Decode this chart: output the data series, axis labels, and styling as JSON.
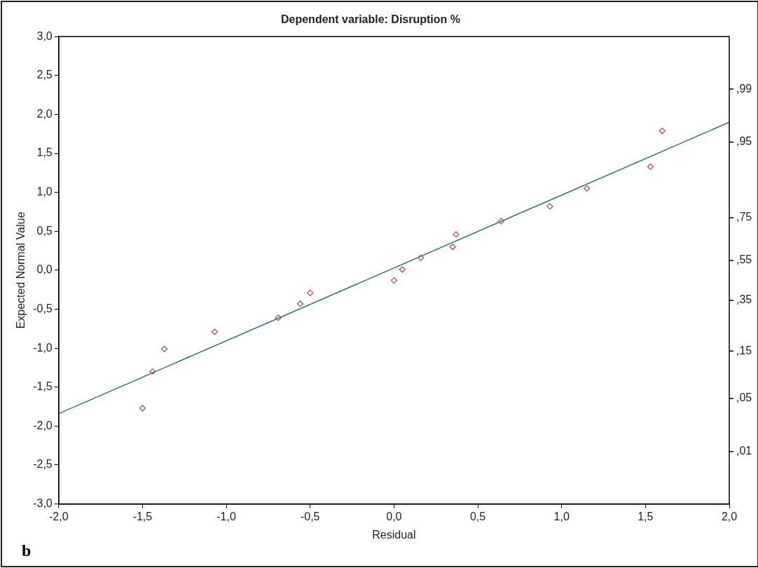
{
  "chart_data": {
    "type": "scatter",
    "title": "Dependent variable: Disruption %",
    "xlabel": "Residual",
    "ylabel": "Expected Normal Value",
    "xlim": [
      -2,
      2
    ],
    "xticks": [
      {
        "value": -2,
        "label": "-2,0"
      },
      {
        "value": -1.5,
        "label": "-1,5"
      },
      {
        "value": -1,
        "label": "-1,0"
      },
      {
        "value": -0.5,
        "label": "-0,5"
      },
      {
        "value": 0,
        "label": "0,0"
      },
      {
        "value": 0.5,
        "label": "0,5"
      },
      {
        "value": 1,
        "label": "1,0"
      },
      {
        "value": 1.5,
        "label": "1,5"
      },
      {
        "value": 2,
        "label": "2,0"
      }
    ],
    "ylim": [
      -3,
      3
    ],
    "yticks": [
      {
        "value": -3,
        "label": "-3,0"
      },
      {
        "value": -2.5,
        "label": "-2,5"
      },
      {
        "value": -2,
        "label": "-2,0"
      },
      {
        "value": -1.5,
        "label": "-1,5"
      },
      {
        "value": -1,
        "label": "-1,0"
      },
      {
        "value": -0.5,
        "label": "-0,5"
      },
      {
        "value": 0,
        "label": "0,0"
      },
      {
        "value": 0.5,
        "label": "0,5"
      },
      {
        "value": 1,
        "label": "1,0"
      },
      {
        "value": 1.5,
        "label": "1,5"
      },
      {
        "value": 2,
        "label": "2,0"
      },
      {
        "value": 2.5,
        "label": "2,5"
      },
      {
        "value": 3,
        "label": "3,0"
      }
    ],
    "grid": false,
    "legend": false,
    "marker": "diamond",
    "series": [
      {
        "color": "#b04848",
        "x": [
          -1.5,
          -1.44,
          -1.37,
          -1.07,
          -0.69,
          -0.56,
          -0.5,
          0.0,
          0.05,
          0.16,
          0.35,
          0.37,
          0.64,
          0.93,
          1.15,
          1.53,
          1.6
        ],
        "values": [
          -1.77,
          -1.3,
          -1.01,
          -0.79,
          -0.61,
          -0.43,
          -0.29,
          -0.13,
          0.01,
          0.16,
          0.3,
          0.46,
          0.63,
          0.82,
          1.05,
          1.33,
          1.79
        ]
      },
      {
        "type": "line",
        "color": "#2e6e80",
        "line_style": "solid",
        "marker": "none",
        "x": [
          -2,
          2
        ],
        "values": [
          -1.84,
          1.9
        ]
      }
    ],
    "annotations": [
      "b",
      ",01",
      ",05",
      ",15",
      ",35",
      ",55",
      ",75",
      ",95",
      ",99"
    ]
  }
}
